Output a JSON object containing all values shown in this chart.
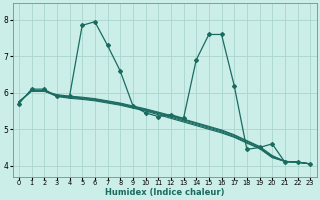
{
  "xlabel": "Humidex (Indice chaleur)",
  "bg_color": "#cceee8",
  "grid_color": "#aad4ce",
  "line_color": "#1a6b60",
  "xlim": [
    -0.5,
    23.5
  ],
  "ylim": [
    3.7,
    8.45
  ],
  "yticks": [
    4,
    5,
    6,
    7,
    8
  ],
  "xticks": [
    0,
    1,
    2,
    3,
    4,
    5,
    6,
    7,
    8,
    9,
    10,
    11,
    12,
    13,
    14,
    15,
    16,
    17,
    18,
    19,
    20,
    21,
    22,
    23
  ],
  "main_series": [
    5.7,
    6.1,
    6.1,
    5.9,
    5.9,
    7.85,
    7.95,
    7.3,
    6.6,
    5.65,
    5.45,
    5.35,
    5.4,
    5.3,
    6.9,
    7.6,
    7.6,
    6.2,
    4.45,
    4.5,
    4.6,
    4.1,
    4.1,
    4.05
  ],
  "straight_series": [
    [
      5.75,
      6.05,
      6.05,
      5.9,
      5.85,
      5.82,
      5.78,
      5.72,
      5.66,
      5.58,
      5.5,
      5.4,
      5.3,
      5.2,
      5.1,
      5.0,
      4.9,
      4.78,
      4.62,
      4.47,
      4.22,
      4.12,
      4.1,
      4.05
    ],
    [
      5.75,
      6.05,
      6.05,
      5.92,
      5.87,
      5.84,
      5.8,
      5.74,
      5.68,
      5.6,
      5.52,
      5.43,
      5.33,
      5.23,
      5.13,
      5.03,
      4.93,
      4.8,
      4.64,
      4.49,
      4.24,
      4.12,
      4.1,
      4.05
    ],
    [
      5.75,
      6.05,
      6.05,
      5.93,
      5.89,
      5.86,
      5.82,
      5.76,
      5.7,
      5.62,
      5.54,
      5.45,
      5.36,
      5.26,
      5.16,
      5.06,
      4.96,
      4.83,
      4.67,
      4.51,
      4.26,
      4.12,
      4.1,
      4.05
    ],
    [
      5.75,
      6.05,
      6.05,
      5.95,
      5.91,
      5.88,
      5.84,
      5.78,
      5.72,
      5.64,
      5.56,
      5.47,
      5.38,
      5.28,
      5.18,
      5.08,
      4.98,
      4.85,
      4.69,
      4.53,
      4.28,
      4.12,
      4.1,
      4.05
    ]
  ]
}
